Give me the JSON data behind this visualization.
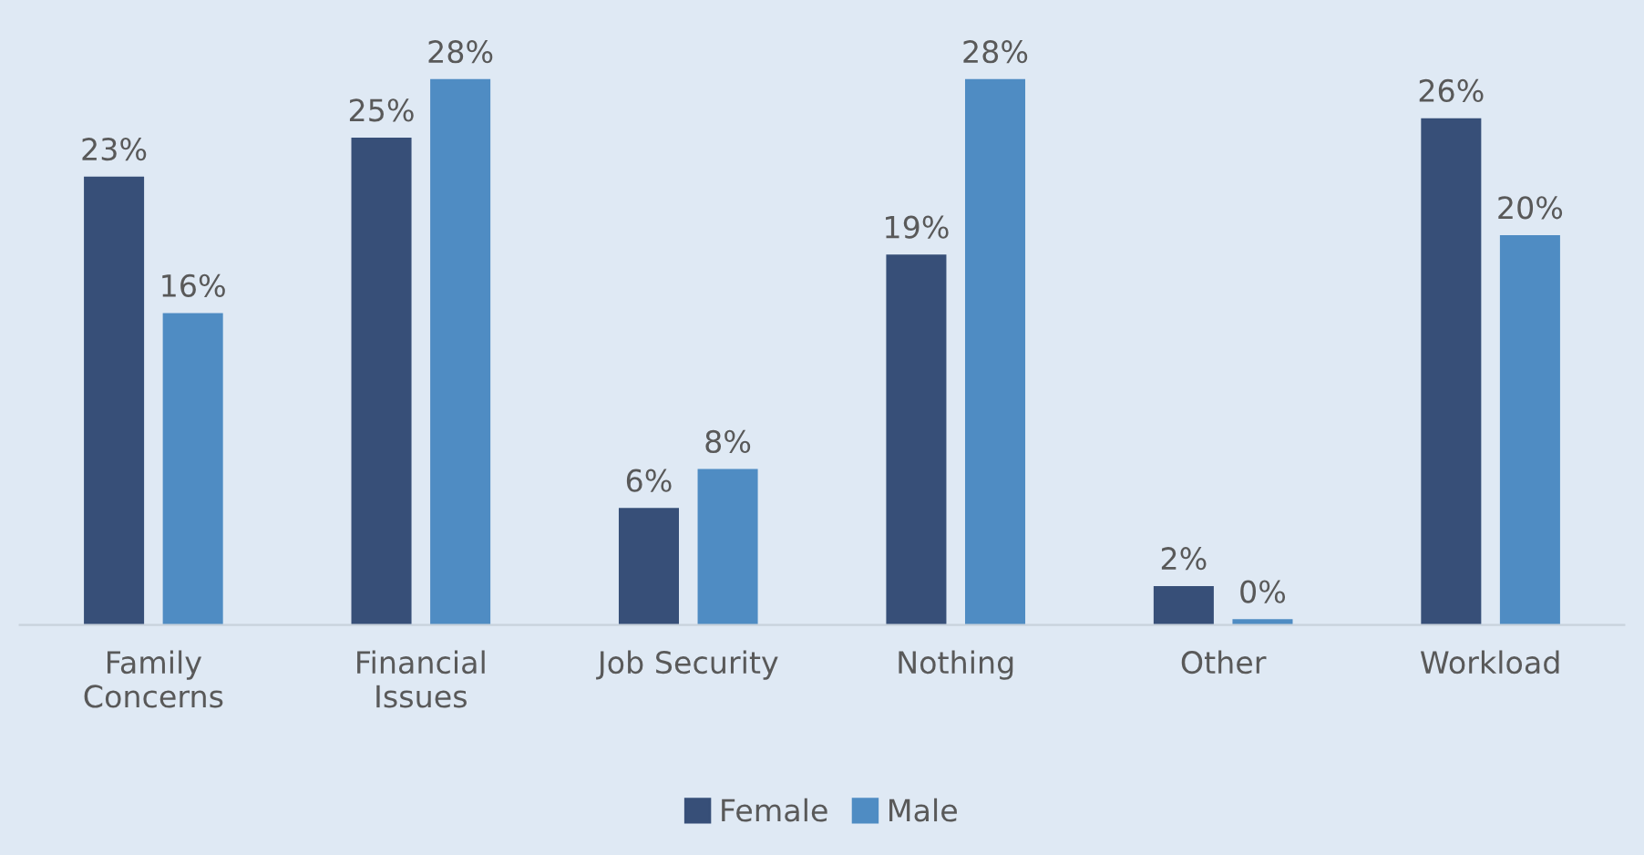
{
  "chart_data": {
    "type": "bar",
    "categories": [
      "Family\nConcerns",
      "Financial\nIssues",
      "Job Security",
      "Nothing",
      "Other",
      "Workload"
    ],
    "series": [
      {
        "name": "Female",
        "color": "#374f78",
        "values": [
          23,
          25,
          6,
          19,
          2,
          26
        ],
        "value_labels": [
          "23%",
          "25%",
          "6%",
          "19%",
          "2%",
          "26%"
        ]
      },
      {
        "name": "Male",
        "color": "#4f8cc3",
        "values": [
          16,
          28,
          8,
          28,
          0.3,
          20
        ],
        "value_labels": [
          "16%",
          "28%",
          "8%",
          "28%",
          "0%",
          "20%"
        ]
      }
    ],
    "legend": "bottom",
    "grid": false
  }
}
